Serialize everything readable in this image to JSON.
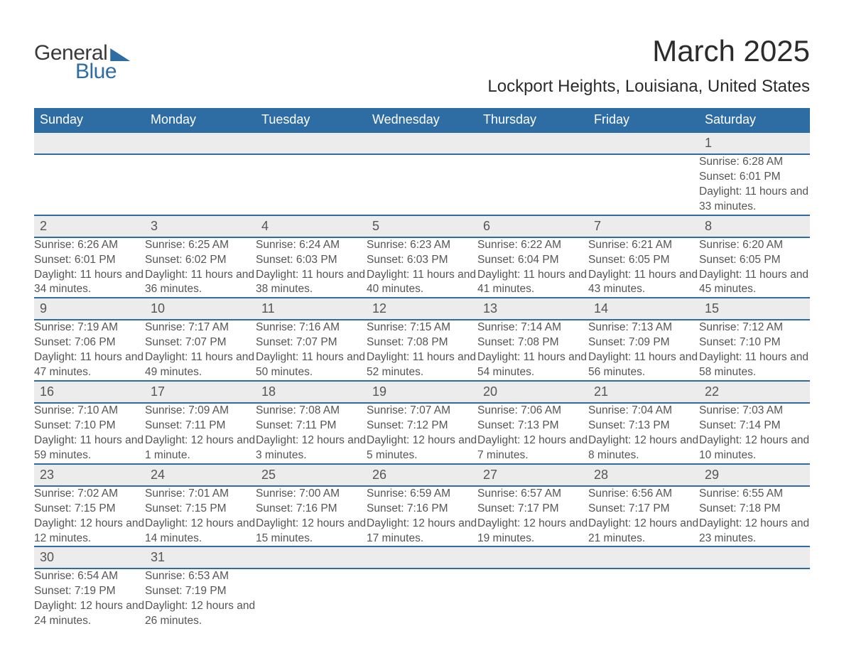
{
  "logo": {
    "text_general": "General",
    "text_blue": "Blue"
  },
  "title": "March 2025",
  "location": "Lockport Heights, Louisiana, United States",
  "colors": {
    "header_bg": "#2e6da4",
    "header_text": "#ffffff",
    "daynum_bg": "#ececec",
    "row_divider": "#2e6da4",
    "body_text": "#555555",
    "page_bg": "#ffffff"
  },
  "day_headers": [
    "Sunday",
    "Monday",
    "Tuesday",
    "Wednesday",
    "Thursday",
    "Friday",
    "Saturday"
  ],
  "weeks": [
    [
      null,
      null,
      null,
      null,
      null,
      null,
      {
        "n": "1",
        "sunrise": "6:28 AM",
        "sunset": "6:01 PM",
        "daylight": "11 hours and 33 minutes."
      }
    ],
    [
      {
        "n": "2",
        "sunrise": "6:26 AM",
        "sunset": "6:01 PM",
        "daylight": "11 hours and 34 minutes."
      },
      {
        "n": "3",
        "sunrise": "6:25 AM",
        "sunset": "6:02 PM",
        "daylight": "11 hours and 36 minutes."
      },
      {
        "n": "4",
        "sunrise": "6:24 AM",
        "sunset": "6:03 PM",
        "daylight": "11 hours and 38 minutes."
      },
      {
        "n": "5",
        "sunrise": "6:23 AM",
        "sunset": "6:03 PM",
        "daylight": "11 hours and 40 minutes."
      },
      {
        "n": "6",
        "sunrise": "6:22 AM",
        "sunset": "6:04 PM",
        "daylight": "11 hours and 41 minutes."
      },
      {
        "n": "7",
        "sunrise": "6:21 AM",
        "sunset": "6:05 PM",
        "daylight": "11 hours and 43 minutes."
      },
      {
        "n": "8",
        "sunrise": "6:20 AM",
        "sunset": "6:05 PM",
        "daylight": "11 hours and 45 minutes."
      }
    ],
    [
      {
        "n": "9",
        "sunrise": "7:19 AM",
        "sunset": "7:06 PM",
        "daylight": "11 hours and 47 minutes."
      },
      {
        "n": "10",
        "sunrise": "7:17 AM",
        "sunset": "7:07 PM",
        "daylight": "11 hours and 49 minutes."
      },
      {
        "n": "11",
        "sunrise": "7:16 AM",
        "sunset": "7:07 PM",
        "daylight": "11 hours and 50 minutes."
      },
      {
        "n": "12",
        "sunrise": "7:15 AM",
        "sunset": "7:08 PM",
        "daylight": "11 hours and 52 minutes."
      },
      {
        "n": "13",
        "sunrise": "7:14 AM",
        "sunset": "7:08 PM",
        "daylight": "11 hours and 54 minutes."
      },
      {
        "n": "14",
        "sunrise": "7:13 AM",
        "sunset": "7:09 PM",
        "daylight": "11 hours and 56 minutes."
      },
      {
        "n": "15",
        "sunrise": "7:12 AM",
        "sunset": "7:10 PM",
        "daylight": "11 hours and 58 minutes."
      }
    ],
    [
      {
        "n": "16",
        "sunrise": "7:10 AM",
        "sunset": "7:10 PM",
        "daylight": "11 hours and 59 minutes."
      },
      {
        "n": "17",
        "sunrise": "7:09 AM",
        "sunset": "7:11 PM",
        "daylight": "12 hours and 1 minute."
      },
      {
        "n": "18",
        "sunrise": "7:08 AM",
        "sunset": "7:11 PM",
        "daylight": "12 hours and 3 minutes."
      },
      {
        "n": "19",
        "sunrise": "7:07 AM",
        "sunset": "7:12 PM",
        "daylight": "12 hours and 5 minutes."
      },
      {
        "n": "20",
        "sunrise": "7:06 AM",
        "sunset": "7:13 PM",
        "daylight": "12 hours and 7 minutes."
      },
      {
        "n": "21",
        "sunrise": "7:04 AM",
        "sunset": "7:13 PM",
        "daylight": "12 hours and 8 minutes."
      },
      {
        "n": "22",
        "sunrise": "7:03 AM",
        "sunset": "7:14 PM",
        "daylight": "12 hours and 10 minutes."
      }
    ],
    [
      {
        "n": "23",
        "sunrise": "7:02 AM",
        "sunset": "7:15 PM",
        "daylight": "12 hours and 12 minutes."
      },
      {
        "n": "24",
        "sunrise": "7:01 AM",
        "sunset": "7:15 PM",
        "daylight": "12 hours and 14 minutes."
      },
      {
        "n": "25",
        "sunrise": "7:00 AM",
        "sunset": "7:16 PM",
        "daylight": "12 hours and 15 minutes."
      },
      {
        "n": "26",
        "sunrise": "6:59 AM",
        "sunset": "7:16 PM",
        "daylight": "12 hours and 17 minutes."
      },
      {
        "n": "27",
        "sunrise": "6:57 AM",
        "sunset": "7:17 PM",
        "daylight": "12 hours and 19 minutes."
      },
      {
        "n": "28",
        "sunrise": "6:56 AM",
        "sunset": "7:17 PM",
        "daylight": "12 hours and 21 minutes."
      },
      {
        "n": "29",
        "sunrise": "6:55 AM",
        "sunset": "7:18 PM",
        "daylight": "12 hours and 23 minutes."
      }
    ],
    [
      {
        "n": "30",
        "sunrise": "6:54 AM",
        "sunset": "7:19 PM",
        "daylight": "12 hours and 24 minutes."
      },
      {
        "n": "31",
        "sunrise": "6:53 AM",
        "sunset": "7:19 PM",
        "daylight": "12 hours and 26 minutes."
      },
      null,
      null,
      null,
      null,
      null
    ]
  ],
  "labels": {
    "sunrise": "Sunrise: ",
    "sunset": "Sunset: ",
    "daylight": "Daylight: "
  }
}
